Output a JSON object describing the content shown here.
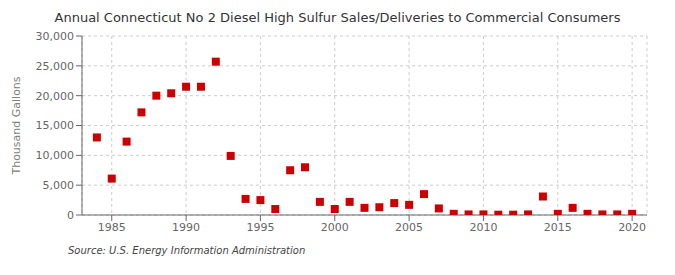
{
  "chart_data": {
    "type": "scatter",
    "title": "Annual Connecticut No 2 Diesel High Sulfur Sales/Deliveries to Commercial Consumers",
    "ylabel": "Thousand Gallons",
    "annotations": [
      "Source: U.S. Energy Information Administration"
    ],
    "x": [
      1984,
      1985,
      1986,
      1987,
      1988,
      1989,
      1990,
      1991,
      1992,
      1993,
      1994,
      1995,
      1996,
      1997,
      1998,
      1999,
      2000,
      2001,
      2002,
      2003,
      2004,
      2005,
      2006,
      2007,
      2008,
      2009,
      2010,
      2011,
      2012,
      2013,
      2014,
      2015,
      2016,
      2017,
      2018,
      2019,
      2020
    ],
    "values": [
      13000,
      6100,
      12300,
      17200,
      20000,
      20400,
      21500,
      21500,
      25700,
      9900,
      2700,
      2500,
      1000,
      7500,
      8000,
      2200,
      1000,
      2200,
      1200,
      1300,
      2000,
      1700,
      3500,
      1100,
      200,
      100,
      100,
      50,
      50,
      100,
      3100,
      200,
      1200,
      200,
      100,
      100,
      200
    ],
    "color": "#cc0000",
    "marker": "square",
    "xlim": [
      1983,
      2021
    ],
    "xticks": [
      1985,
      1990,
      1995,
      2000,
      2005,
      2010,
      2015,
      2020
    ],
    "ylim": [
      0,
      30000
    ],
    "yticks": [
      0,
      {
        "value": 5000,
        "label": "5,000"
      },
      {
        "value": 10000,
        "label": "10,000"
      },
      {
        "value": 15000,
        "label": "15,000"
      },
      {
        "value": 20000,
        "label": "20,000"
      },
      {
        "value": 25000,
        "label": "25,000"
      },
      {
        "value": 30000,
        "label": "30,000"
      }
    ],
    "grid": true
  }
}
